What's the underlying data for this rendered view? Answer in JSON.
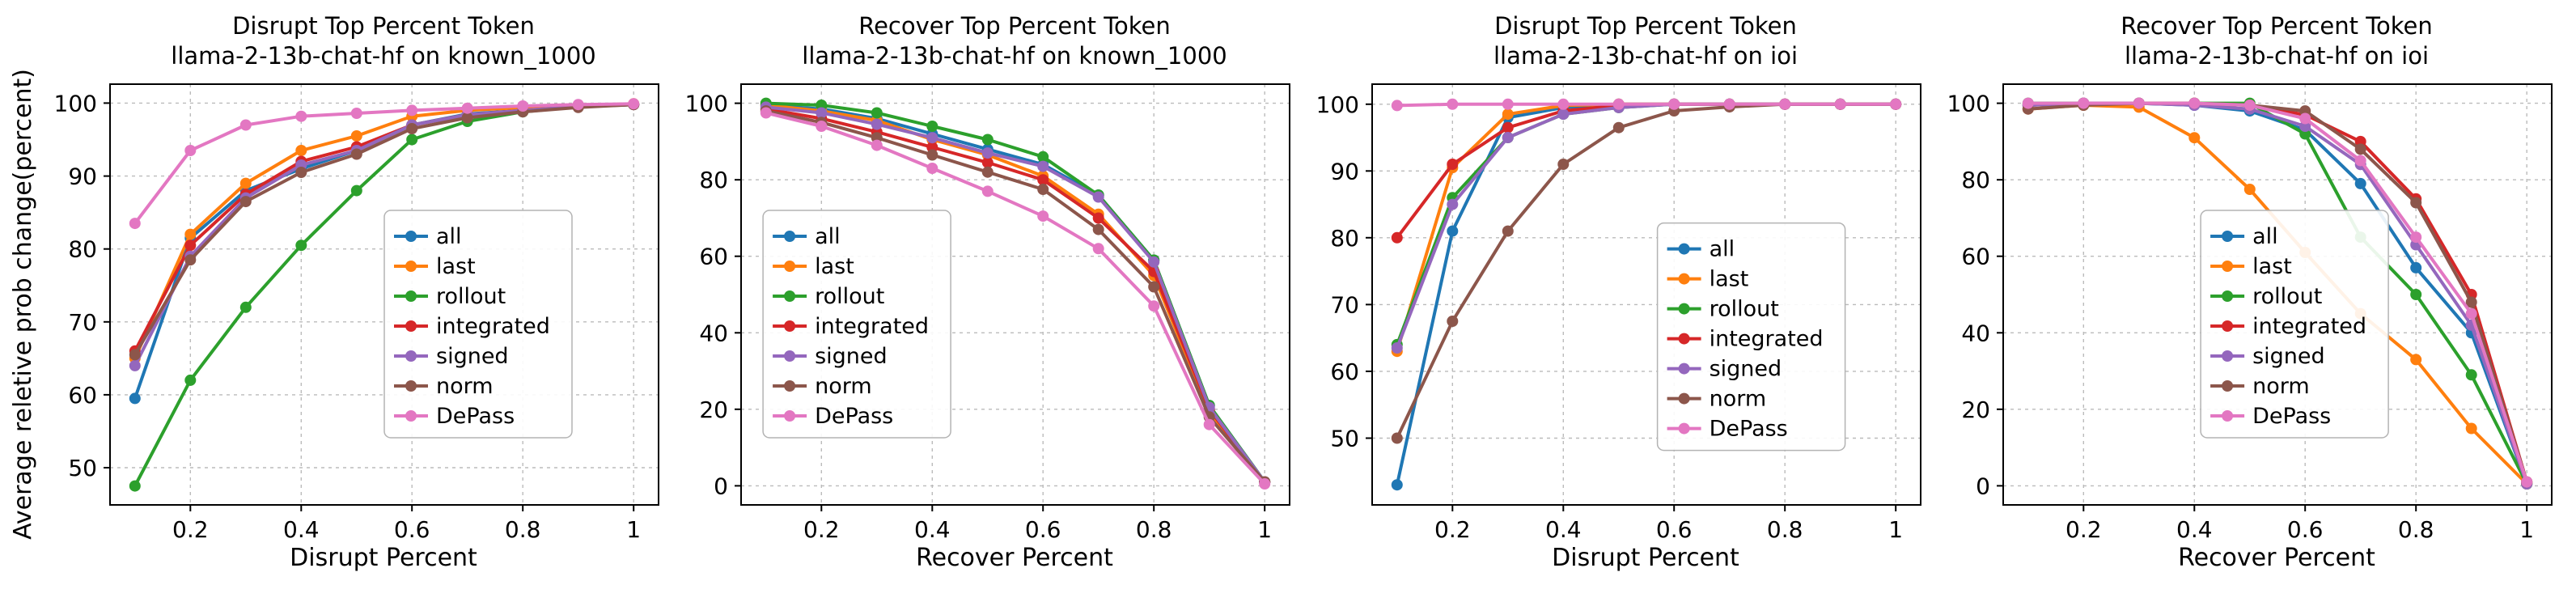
{
  "figure": {
    "ylabel": "Average reletive prob change(percent)"
  },
  "series_colors": {
    "all": "#1f77b4",
    "last": "#ff7f0e",
    "rollout": "#2ca02c",
    "integrated": "#d62728",
    "signed": "#9467bd",
    "norm": "#8c564b",
    "DePass": "#e377c2"
  },
  "chart_data": [
    {
      "type": "line",
      "title": "Disrupt Top Percent Token",
      "subtitle": "llama-2-13b-chat-hf on known_1000",
      "xlabel": "Disrupt Percent",
      "ylabel": "Average reletive prob change(percent)",
      "x": [
        0.1,
        0.2,
        0.3,
        0.4,
        0.5,
        0.6,
        0.7,
        0.8,
        0.9,
        1.0
      ],
      "xlim": [
        0.055,
        1.045
      ],
      "ylim": [
        44.9,
        102.6
      ],
      "xticks": [
        0.2,
        0.4,
        0.6,
        0.8,
        1.0
      ],
      "yticks": [
        50,
        60,
        70,
        80,
        90,
        100
      ],
      "grid": true,
      "legend": [
        "all",
        "last",
        "rollout",
        "integrated",
        "signed",
        "norm",
        "DePass"
      ],
      "legend_position": "center right",
      "legend_frac": {
        "x": 0.5,
        "y": 0.3
      },
      "series": [
        {
          "name": "all",
          "values": [
            59.5,
            81.5,
            88.0,
            91.0,
            93.5,
            97.0,
            98.5,
            99.0,
            99.5,
            99.8
          ]
        },
        {
          "name": "last",
          "values": [
            65.0,
            82.0,
            89.0,
            93.5,
            95.5,
            98.2,
            99.0,
            99.4,
            99.7,
            99.9
          ]
        },
        {
          "name": "rollout",
          "values": [
            47.5,
            62.0,
            72.0,
            80.5,
            88.0,
            95.0,
            97.5,
            98.8,
            99.5,
            99.8
          ]
        },
        {
          "name": "integrated",
          "values": [
            66.0,
            80.5,
            87.5,
            92.0,
            94.0,
            97.0,
            98.4,
            99.0,
            99.5,
            99.8
          ]
        },
        {
          "name": "signed",
          "values": [
            64.0,
            79.0,
            87.0,
            91.5,
            93.5,
            97.0,
            98.4,
            99.0,
            99.5,
            99.8
          ]
        },
        {
          "name": "norm",
          "values": [
            65.5,
            78.5,
            86.5,
            90.5,
            93.0,
            96.5,
            98.0,
            98.8,
            99.4,
            99.8
          ]
        },
        {
          "name": "DePass",
          "values": [
            83.5,
            93.5,
            97.0,
            98.2,
            98.6,
            99.0,
            99.3,
            99.6,
            99.8,
            99.9
          ]
        }
      ]
    },
    {
      "type": "line",
      "title": "Recover Top Percent Token",
      "subtitle": "llama-2-13b-chat-hf on known_1000",
      "xlabel": "Recover Percent",
      "ylabel": "Average reletive prob change(percent)",
      "x": [
        0.1,
        0.2,
        0.3,
        0.4,
        0.5,
        0.6,
        0.7,
        0.8,
        0.9,
        1.0
      ],
      "xlim": [
        0.055,
        1.045
      ],
      "ylim": [
        -5,
        105
      ],
      "xticks": [
        0.2,
        0.4,
        0.6,
        0.8,
        1.0
      ],
      "yticks": [
        0,
        20,
        40,
        60,
        80,
        100
      ],
      "grid": true,
      "legend": [
        "all",
        "last",
        "rollout",
        "integrated",
        "signed",
        "norm",
        "DePass"
      ],
      "legend_position": "center left",
      "legend_frac": {
        "x": 0.04,
        "y": 0.3
      },
      "series": [
        {
          "name": "all",
          "values": [
            99.5,
            98.5,
            96.0,
            92.0,
            88.0,
            84.0,
            76.0,
            59.0,
            21.0,
            1.0
          ]
        },
        {
          "name": "last",
          "values": [
            99.5,
            98.0,
            95.5,
            90.5,
            86.5,
            81.0,
            71.0,
            55.0,
            19.0,
            1.0
          ]
        },
        {
          "name": "rollout",
          "values": [
            100.0,
            99.5,
            97.5,
            94.0,
            90.5,
            86.0,
            76.0,
            59.0,
            21.0,
            1.0
          ]
        },
        {
          "name": "integrated",
          "values": [
            98.5,
            96.0,
            92.5,
            88.5,
            84.5,
            80.0,
            70.0,
            56.0,
            20.0,
            1.0
          ]
        },
        {
          "name": "signed",
          "values": [
            99.0,
            97.5,
            94.5,
            91.0,
            87.0,
            83.5,
            75.5,
            58.5,
            20.5,
            1.0
          ]
        },
        {
          "name": "norm",
          "values": [
            98.0,
            95.0,
            91.0,
            86.5,
            82.0,
            77.5,
            67.0,
            52.0,
            18.0,
            1.0
          ]
        },
        {
          "name": "DePass",
          "values": [
            97.5,
            94.0,
            89.0,
            83.0,
            77.0,
            70.5,
            62.0,
            47.0,
            16.0,
            0.5
          ]
        }
      ]
    },
    {
      "type": "line",
      "title": "Disrupt Top Percent Token",
      "subtitle": "llama-2-13b-chat-hf on ioi",
      "xlabel": "Disrupt Percent",
      "ylabel": "Average reletive prob change(percent)",
      "x": [
        0.1,
        0.2,
        0.3,
        0.4,
        0.5,
        0.6,
        0.7,
        0.8,
        0.9,
        1.0
      ],
      "xlim": [
        0.055,
        1.045
      ],
      "ylim": [
        40,
        103
      ],
      "xticks": [
        0.2,
        0.4,
        0.6,
        0.8,
        1.0
      ],
      "yticks": [
        50,
        60,
        70,
        80,
        90,
        100
      ],
      "grid": true,
      "legend": [
        "all",
        "last",
        "rollout",
        "integrated",
        "signed",
        "norm",
        "DePass"
      ],
      "legend_position": "center right",
      "legend_frac": {
        "x": 0.52,
        "y": 0.33
      },
      "series": [
        {
          "name": "all",
          "values": [
            43.0,
            81.0,
            98.0,
            99.5,
            100.0,
            100.0,
            100.0,
            100.0,
            100.0,
            100.0
          ]
        },
        {
          "name": "last",
          "values": [
            63.0,
            90.5,
            98.5,
            99.8,
            100.0,
            100.0,
            100.0,
            100.0,
            100.0,
            100.0
          ]
        },
        {
          "name": "rollout",
          "values": [
            64.0,
            86.0,
            95.0,
            98.5,
            99.5,
            100.0,
            100.0,
            100.0,
            100.0,
            100.0
          ]
        },
        {
          "name": "integrated",
          "values": [
            80.0,
            91.0,
            96.5,
            99.0,
            99.8,
            100.0,
            100.0,
            100.0,
            100.0,
            100.0
          ]
        },
        {
          "name": "signed",
          "values": [
            63.5,
            85.0,
            95.0,
            98.5,
            99.5,
            100.0,
            100.0,
            100.0,
            100.0,
            100.0
          ]
        },
        {
          "name": "norm",
          "values": [
            50.0,
            67.5,
            81.0,
            91.0,
            96.5,
            99.0,
            99.6,
            100.0,
            100.0,
            100.0
          ]
        },
        {
          "name": "DePass",
          "values": [
            99.8,
            100.0,
            100.0,
            100.0,
            100.0,
            100.0,
            100.0,
            100.0,
            100.0,
            100.0
          ]
        }
      ]
    },
    {
      "type": "line",
      "title": "Recover Top Percent Token",
      "subtitle": "llama-2-13b-chat-hf on ioi",
      "xlabel": "Recover Percent",
      "ylabel": "Average reletive prob change(percent)",
      "x": [
        0.1,
        0.2,
        0.3,
        0.4,
        0.5,
        0.6,
        0.7,
        0.8,
        0.9,
        1.0
      ],
      "xlim": [
        0.055,
        1.045
      ],
      "ylim": [
        -5,
        105
      ],
      "xticks": [
        0.2,
        0.4,
        0.6,
        0.8,
        1.0
      ],
      "yticks": [
        0,
        20,
        40,
        60,
        80,
        100
      ],
      "grid": true,
      "legend": [
        "all",
        "last",
        "rollout",
        "integrated",
        "signed",
        "norm",
        "DePass"
      ],
      "legend_position": "center left",
      "legend_frac": {
        "x": 0.36,
        "y": 0.3
      },
      "series": [
        {
          "name": "all",
          "values": [
            99.5,
            100.0,
            100.0,
            99.5,
            98.0,
            93.0,
            79.0,
            57.0,
            40.0,
            0.5
          ]
        },
        {
          "name": "last",
          "values": [
            98.5,
            99.5,
            99.0,
            91.0,
            77.5,
            61.0,
            45.0,
            33.0,
            15.0,
            0.5
          ]
        },
        {
          "name": "rollout",
          "values": [
            100.0,
            100.0,
            100.0,
            100.0,
            100.0,
            92.0,
            65.0,
            50.0,
            29.0,
            0.5
          ]
        },
        {
          "name": "integrated",
          "values": [
            99.5,
            100.0,
            100.0,
            100.0,
            99.5,
            97.0,
            90.0,
            75.0,
            50.0,
            1.0
          ]
        },
        {
          "name": "signed",
          "values": [
            99.5,
            100.0,
            100.0,
            99.5,
            98.5,
            94.0,
            84.0,
            63.0,
            42.0,
            0.5
          ]
        },
        {
          "name": "norm",
          "values": [
            98.5,
            99.5,
            100.0,
            100.0,
            99.5,
            98.0,
            88.0,
            74.0,
            48.0,
            1.0
          ]
        },
        {
          "name": "DePass",
          "values": [
            100.0,
            100.0,
            100.0,
            100.0,
            99.5,
            96.0,
            85.0,
            65.0,
            45.0,
            1.0
          ]
        }
      ]
    }
  ]
}
